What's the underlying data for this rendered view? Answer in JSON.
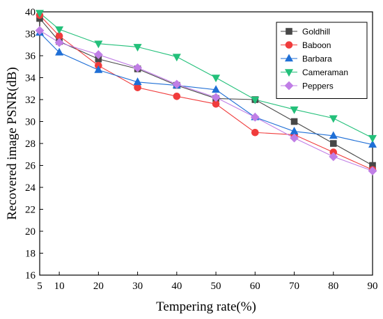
{
  "chart_data": {
    "type": "line",
    "title": "",
    "xlabel": "Tempering rate(%)",
    "ylabel": "Recovered image PSNR(dB)",
    "x": [
      5,
      10,
      20,
      30,
      40,
      50,
      60,
      70,
      80,
      90
    ],
    "xticks": [
      5,
      10,
      20,
      30,
      40,
      50,
      60,
      70,
      80,
      90
    ],
    "yticks": [
      16,
      18,
      20,
      22,
      24,
      26,
      28,
      30,
      32,
      34,
      36,
      38,
      40
    ],
    "xlim": [
      5,
      90
    ],
    "ylim": [
      16,
      40
    ],
    "grid": false,
    "legend_position": "top-right",
    "series": [
      {
        "name": "Goldhill",
        "color": "#474747",
        "marker": "square",
        "values": [
          39.4,
          37.3,
          35.7,
          34.8,
          33.3,
          32.1,
          32.0,
          30.0,
          28.0,
          26.0
        ]
      },
      {
        "name": "Baboon",
        "color": "#f03c3c",
        "marker": "circle",
        "values": [
          39.7,
          37.8,
          35.1,
          33.1,
          32.3,
          31.6,
          29.0,
          28.8,
          27.2,
          25.6
        ]
      },
      {
        "name": "Barbara",
        "color": "#1f6fd6",
        "marker": "triangle-up",
        "values": [
          38.1,
          36.3,
          34.7,
          33.6,
          33.3,
          32.9,
          30.4,
          29.1,
          28.7,
          27.9
        ]
      },
      {
        "name": "Cameraman",
        "color": "#23c07a",
        "marker": "triangle-down",
        "values": [
          39.9,
          38.4,
          37.1,
          36.8,
          35.9,
          34.0,
          32.0,
          31.1,
          30.3,
          28.5
        ]
      },
      {
        "name": "Peppers",
        "color": "#c07ee6",
        "marker": "diamond",
        "values": [
          38.3,
          37.2,
          36.1,
          34.9,
          33.4,
          32.2,
          30.4,
          28.5,
          26.8,
          25.5
        ]
      }
    ]
  }
}
